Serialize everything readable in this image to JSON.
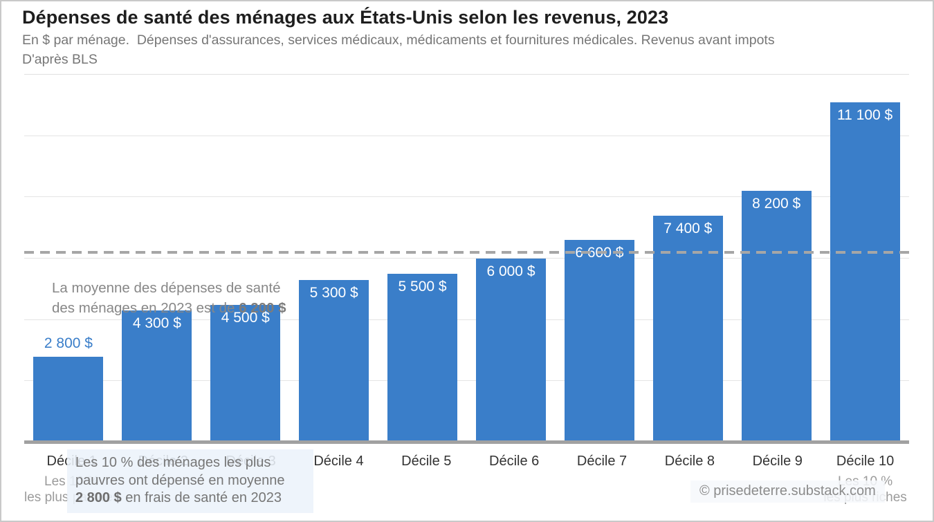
{
  "header": {
    "title": "Dépenses de santé des ménages aux États-Unis selon les revenus, 2023",
    "subtitle_line1": "En $ par ménage.  Dépenses d'assurances, services médicaux, médicaments et fournitures médicales. Revenus avant impots",
    "subtitle_line2": "D'après BLS"
  },
  "chart_data": {
    "type": "bar",
    "title": "Dépenses de santé des ménages aux États-Unis selon les revenus, 2023",
    "subtitle": "En $ par ménage. Dépenses d'assurances, services médicaux, médicaments et fournitures médicales. Revenus avant impots",
    "source": "D'après BLS",
    "categories": [
      "Décile 1",
      "Décile 2",
      "Décile 3",
      "Décile 4",
      "Décile 5",
      "Décile 6",
      "Décile 7",
      "Décile 8",
      "Décile 9",
      "Décile 10"
    ],
    "values": [
      2800,
      4300,
      4500,
      5300,
      5500,
      6000,
      6600,
      7400,
      8200,
      11100
    ],
    "value_labels": [
      "2 800 $",
      "4 300 $",
      "4 500 $",
      "5 300 $",
      "5 500 $",
      "6 000 $",
      "6 600 $",
      "7 400 $",
      "8 200 $",
      "11 100 $"
    ],
    "unit": "$ par ménage",
    "xlabel": "",
    "ylabel": "En $ par ménage",
    "ylim": [
      0,
      12000
    ],
    "grid": true,
    "gridlines": [
      2000,
      4000,
      6000,
      8000,
      10000
    ],
    "legend": false,
    "mean": {
      "value": 6200,
      "label": "6 200 $"
    },
    "bar_color": "#3a7ec9",
    "outside_label_index": 0
  },
  "annotations": {
    "mean_line1": "La moyenne des dépenses de santé",
    "mean_line2_text": "des ménages en 2023 est de",
    "mean_line2_bold": "6 200 $",
    "poor_line1": "Les 10 % des ménages les plus",
    "poor_line2": "pauvres ont dépensé en moyenne",
    "poor_line3_bold": "2 800 $",
    "poor_line3_rest": "en frais de santé en 2023",
    "watermark": "© prisedeterre.substack.com"
  },
  "x_axis": {
    "left_sub_line1": "Les 10 %",
    "left_sub_line2": "les plus pauvres",
    "right_sub_line1": "Les 10 %",
    "right_sub_line2": "les plus riches"
  },
  "colors": {
    "bar": "#3a7ec9",
    "mean_line": "#a6a6a6",
    "baseline": "#a1a1a1",
    "gridline": "#e4e4e4",
    "value_label_inside": "#ffffff"
  }
}
